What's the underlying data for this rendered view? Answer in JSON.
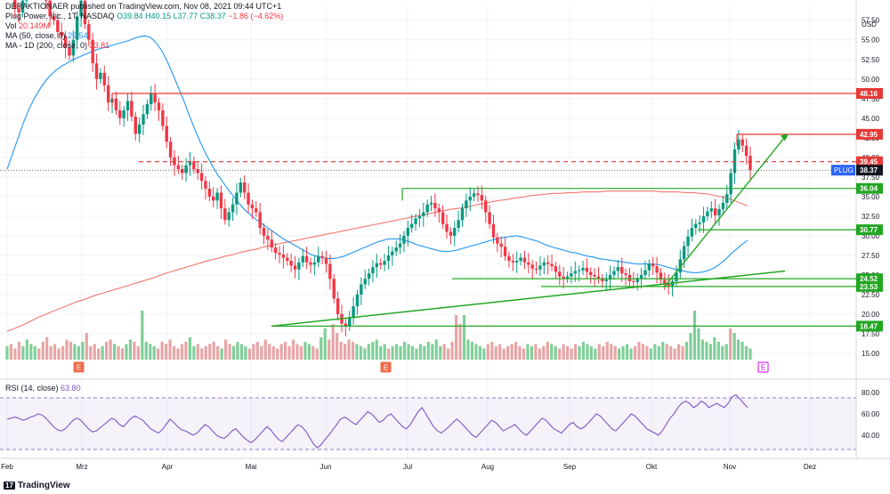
{
  "header": {
    "publisher": "DERAKTIONAER published on TradingView.com, Nov 08, 2021 09:44 UTC+1",
    "symbol_line": "Plug Power, Inc., 1T, NASDAQ",
    "ohlc": {
      "o": "O39.84",
      "h": "H40.15",
      "l": "L37.77",
      "c": "C38.37",
      "chg": "−1.86 (−4.62%)"
    },
    "vol": {
      "label": "Vol",
      "value": "20.149M"
    },
    "ma50": {
      "label": "MA (50, close, 0)",
      "value": "29.54"
    },
    "ma200": {
      "label": "MA - 1D (200, close, 0)",
      "value": "33.81"
    },
    "rsi": {
      "label": "RSI (14, close)",
      "value": "63.80"
    }
  },
  "footer": {
    "logo_text": "TradingView",
    "logo_mark": "17"
  },
  "colors": {
    "up": "#089981",
    "down": "#f23645",
    "ma50": "#2196f3",
    "ma200": "#f0776e",
    "support": "#22a722",
    "resistance": "#e53935",
    "rsi": "#7e57c2"
  },
  "chart_data": {
    "type": "candlestick",
    "currency": "USD",
    "y_ticks": [
      "57.50",
      "55.00",
      "52.50",
      "50.00",
      "47.50",
      "45.00",
      "42.50",
      "40.00",
      "37.50",
      "35.00",
      "32.50",
      "30.00",
      "27.50",
      "25.00",
      "22.50",
      "20.00",
      "17.50",
      "15.00"
    ],
    "x_ticks": [
      "Feb",
      "Mrz",
      "Apr",
      "Mai",
      "Jun",
      "Jul",
      "Aug",
      "Sep",
      "Okt",
      "Nov",
      "Dez"
    ],
    "ylim": [
      14.2,
      59.4
    ],
    "last_price": {
      "label": "PLUG",
      "value": "38.37"
    },
    "resistance_levels": [
      "48.16",
      "42.95",
      "39.45"
    ],
    "support_levels": [
      "36.04",
      "30.77",
      "24.52",
      "23.53",
      "18.47"
    ],
    "earnings_markers": [
      "E",
      "E",
      "E"
    ],
    "rsi_ticks": [
      "80.00",
      "60.00",
      "40.00"
    ],
    "rsi_ylim": [
      24,
      86
    ],
    "rsi_bands": [
      70,
      30
    ],
    "close_series": [
      62.5,
      61,
      59,
      58.5,
      60,
      63.8,
      65,
      65.5,
      64,
      61,
      60,
      58,
      57.5,
      56,
      55.5,
      54,
      53,
      55,
      58,
      60,
      57,
      55,
      52,
      50,
      50.8,
      49.2,
      47,
      47.5,
      46,
      45,
      46,
      47.2,
      45.2,
      43,
      44.2,
      45.5,
      46.8,
      48.2,
      47,
      46,
      44,
      42,
      40,
      39,
      38.5,
      38,
      39,
      39.5,
      38.5,
      38,
      37,
      36,
      35,
      34.5,
      35.5,
      33.5,
      32,
      33,
      34,
      35.5,
      36.8,
      35.5,
      34,
      33.5,
      33,
      31,
      30,
      29.5,
      28.5,
      27.8,
      27.6,
      27.2,
      26.8,
      26.2,
      25.7,
      26.6,
      27.4,
      26.6,
      26.3,
      26.6,
      27.4,
      27.2,
      26.4,
      24.5,
      22,
      20,
      18.8,
      18.5,
      19.5,
      21,
      22.5,
      23.8,
      24.5,
      25.2,
      26,
      26.5,
      26.3,
      26.8,
      27.5,
      28,
      28.5,
      29,
      30,
      31,
      31.5,
      32.2,
      32.5,
      33,
      34,
      34.2,
      33.5,
      33,
      31.5,
      30.5,
      30,
      31,
      32,
      33.5,
      34.5,
      35,
      35.4,
      35.2,
      34.5,
      33,
      31.5,
      29.8,
      29,
      28.6,
      27.4,
      26.8,
      26.6,
      26.8,
      27.2,
      26.6,
      26.3,
      25.8,
      25.7,
      26.2,
      26.6,
      26.4,
      26.1,
      25.4,
      24.8,
      24.6,
      24.8,
      25.2,
      25.5,
      25.6,
      25.9,
      25.4,
      25,
      24.8,
      24.5,
      24.2,
      24.4,
      25,
      25.5,
      26,
      25.2,
      25,
      24.2,
      24.1,
      24.6,
      25,
      25.6,
      26.4,
      26.1,
      25.3,
      24.4,
      23.9,
      23.6,
      24.2,
      25.3,
      27,
      28.7,
      29.9,
      31,
      31.5,
      31.7,
      32.5,
      33.1,
      33.5,
      32.6,
      33.4,
      34.2,
      35.3,
      38,
      41,
      42.3,
      41.5,
      40.2,
      38.4
    ],
    "ma50_series": [
      38.5,
      40.5,
      42.5,
      44.5,
      46.2,
      47.6,
      48.8,
      49.8,
      50.6,
      51.2,
      51.7,
      52.1,
      52.5,
      52.8,
      53.1,
      53.4,
      53.7,
      53.9,
      54.1,
      54.3,
      54.5,
      54.7,
      54.9,
      55.2,
      55.4,
      55.5,
      55.3,
      54.6,
      53.6,
      52.2,
      50.6,
      48.9,
      47.2,
      45.3,
      43.5,
      41.9,
      40.4,
      39.1,
      37.9,
      36.9,
      35.9,
      35,
      34.1,
      33.3,
      32.7,
      32.1,
      31.6,
      31.1,
      30.6,
      30.1,
      29.6,
      29.2,
      28.8,
      28.4,
      28,
      27.6,
      27.4,
      27.2,
      27.1,
      27.1,
      27.2,
      27.4,
      27.7,
      28,
      28.3,
      28.6,
      28.9,
      29.2,
      29.4,
      29.6,
      29.6,
      29.6,
      29.4,
      29.2,
      28.9,
      28.7,
      28.5,
      28.3,
      28.1,
      28,
      28,
      28.1,
      28.3,
      28.5,
      28.7,
      28.9,
      29.1,
      29.3,
      29.5,
      29.7,
      29.8,
      29.9,
      30,
      29.9,
      29.7,
      29.5,
      29.3,
      29,
      28.7,
      28.5,
      28.3,
      28.1,
      27.9,
      27.8,
      27.6,
      27.4,
      27.3,
      27.1,
      27,
      26.9,
      26.8,
      26.7,
      26.6,
      26.5,
      26.4,
      26.4,
      26.4,
      26.4,
      26.3,
      26.1,
      25.9,
      25.7,
      25.6,
      25.4,
      25.3,
      25.3,
      25.4,
      25.6,
      25.9,
      26.4,
      27,
      27.7,
      28.3,
      28.9,
      29.4
    ],
    "ma200_series": [
      17.8,
      18.2,
      18.6,
      19.1,
      19.6,
      20,
      20.4,
      20.8,
      21.2,
      21.6,
      21.9,
      22.3,
      22.6,
      22.9,
      23.2,
      23.5,
      23.8,
      24.1,
      24.4,
      24.7,
      25.1,
      25.4,
      25.7,
      26,
      26.3,
      26.6,
      26.9,
      27.1,
      27.4,
      27.6,
      27.9,
      28.1,
      28.3,
      28.6,
      28.8,
      29,
      29.2,
      29.4,
      29.6,
      29.8,
      30,
      30.2,
      30.4,
      30.6,
      30.8,
      31,
      31.2,
      31.4,
      31.6,
      31.8,
      32,
      32.2,
      32.4,
      32.6,
      32.8,
      33,
      33.2,
      33.4,
      33.5,
      33.7,
      33.9,
      34.1,
      34.3,
      34.5,
      34.6,
      34.8,
      34.9,
      35.1,
      35.2,
      35.3,
      35.4,
      35.4,
      35.5,
      35.5,
      35.6,
      35.6,
      35.6,
      35.7,
      35.7,
      35.7,
      35.7,
      35.7,
      35.7,
      35.7,
      35.6,
      35.6,
      35.6,
      35.5,
      35.5,
      35.4,
      35.3,
      35.1,
      34.9,
      34.6,
      34.2,
      33.8
    ],
    "rsi_series": [
      55,
      56,
      57,
      56,
      54,
      55,
      57,
      58,
      60,
      59,
      56,
      52,
      48,
      45,
      44,
      46,
      50,
      54,
      56,
      54,
      50,
      46,
      43,
      44,
      47,
      50,
      53,
      56,
      54,
      50,
      48,
      52,
      56,
      58,
      56,
      54,
      50,
      46,
      44,
      42,
      45,
      50,
      55,
      52,
      48,
      45,
      44,
      42,
      40,
      42,
      46,
      50,
      48,
      44,
      40,
      38,
      37,
      40,
      44,
      46,
      42,
      38,
      35,
      33,
      36,
      40,
      44,
      48,
      45,
      40,
      36,
      34,
      38,
      42,
      46,
      50,
      48,
      44,
      38,
      32,
      28,
      31,
      36,
      40,
      45,
      50,
      55,
      57,
      55,
      52,
      50,
      54,
      58,
      62,
      60,
      56,
      52,
      54,
      58,
      60,
      56,
      52,
      48,
      46,
      50,
      56,
      62,
      66,
      60,
      54,
      48,
      44,
      42,
      45,
      48,
      52,
      55,
      52,
      48,
      44,
      40,
      38,
      42,
      46,
      50,
      54,
      52,
      48,
      44,
      46,
      48,
      50,
      46,
      42,
      40,
      44,
      48,
      52,
      56,
      54,
      50,
      46,
      44,
      42,
      46,
      50,
      52,
      48,
      46,
      48,
      52,
      56,
      60,
      58,
      54,
      50,
      46,
      44,
      48,
      52,
      56,
      60,
      58,
      54,
      50,
      46,
      44,
      42,
      40,
      44,
      50,
      56,
      60,
      66,
      70,
      72,
      70,
      66,
      68,
      72,
      70,
      66,
      68,
      70,
      68,
      66,
      70,
      76,
      78,
      74,
      70,
      66
    ],
    "volume_series": [
      6,
      7,
      5,
      8,
      6,
      9,
      7,
      6,
      5,
      8,
      10,
      6,
      7,
      5,
      6,
      9,
      8,
      7,
      6,
      8,
      12,
      6,
      7,
      5,
      6,
      8,
      9,
      7,
      6,
      5,
      7,
      9,
      8,
      6,
      22,
      8,
      7,
      6,
      5,
      8,
      7,
      9,
      6,
      5,
      7,
      8,
      10,
      6,
      7,
      5,
      6,
      7,
      8,
      6,
      5,
      9,
      7,
      6,
      8,
      7,
      6,
      5,
      7,
      8,
      6,
      9,
      7,
      6,
      5,
      7,
      8,
      6,
      9,
      7,
      6,
      8,
      7,
      6,
      5,
      10,
      14,
      9,
      16,
      12,
      8,
      7,
      9,
      8,
      7,
      6,
      5,
      7,
      8,
      9,
      6,
      7,
      5,
      6,
      7,
      6,
      8,
      7,
      6,
      5,
      7,
      6,
      8,
      7,
      9,
      6,
      7,
      5,
      8,
      20,
      16,
      20,
      9,
      8,
      7,
      6,
      5,
      7,
      8,
      6,
      7,
      5,
      6,
      7,
      8,
      6,
      5,
      7,
      6,
      7,
      5,
      6,
      8,
      7,
      6,
      5,
      7,
      6,
      5,
      7,
      6,
      8,
      7,
      6,
      5,
      7,
      6,
      8,
      7,
      6,
      5,
      6,
      7,
      5,
      6,
      8,
      7,
      6,
      5,
      7,
      6,
      8,
      7,
      6,
      5,
      7,
      6,
      8,
      12,
      22,
      14,
      9,
      8,
      7,
      10,
      8,
      6,
      7,
      14,
      12,
      9,
      8,
      6,
      5
    ]
  }
}
